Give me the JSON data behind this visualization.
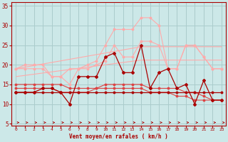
{
  "x": [
    0,
    1,
    2,
    3,
    4,
    5,
    6,
    7,
    8,
    9,
    10,
    11,
    12,
    13,
    14,
    15,
    16,
    17,
    18,
    19,
    20,
    21,
    22,
    23
  ],
  "line_flat_dark": [
    13,
    13,
    13,
    13,
    13,
    13,
    13,
    13,
    13,
    13,
    13,
    13,
    13,
    13,
    13,
    13,
    13,
    13,
    13,
    13,
    13,
    13,
    13,
    13
  ],
  "line_medium1": [
    15,
    15,
    15,
    15,
    15,
    15,
    14,
    14,
    14,
    14,
    15,
    15,
    15,
    15,
    15,
    14,
    14,
    14,
    14,
    13,
    13,
    12,
    11,
    11
  ],
  "line_medium2": [
    14,
    14,
    14,
    14,
    14,
    13,
    13,
    13,
    13,
    14,
    14,
    14,
    14,
    14,
    14,
    13,
    13,
    13,
    12,
    12,
    11,
    11,
    11,
    11
  ],
  "line_jagged": [
    13,
    13,
    13,
    14,
    14,
    13,
    10,
    17,
    17,
    17,
    22,
    23,
    18,
    18,
    25,
    14,
    18,
    19,
    14,
    15,
    10,
    16,
    11,
    11
  ],
  "line_gust_top": [
    19,
    19,
    19,
    19,
    17,
    17,
    19,
    19,
    20,
    21,
    25,
    29,
    29,
    29,
    32,
    32,
    30,
    19,
    19,
    25,
    25,
    22,
    19,
    19
  ],
  "line_gust_mid": [
    19,
    20,
    20,
    20,
    17,
    17,
    15,
    19,
    19,
    20,
    21,
    25,
    22,
    22,
    26,
    26,
    25,
    19,
    19,
    25,
    25,
    22,
    19,
    19
  ],
  "line_trend_upper": [
    19,
    19.4,
    19.8,
    20.2,
    20.6,
    21.0,
    21.4,
    21.8,
    22.2,
    22.6,
    23.0,
    23.4,
    23.8,
    24.2,
    24.6,
    24.6,
    24.6,
    24.6,
    24.6,
    24.6,
    24.6,
    24.6,
    24.6,
    24.6
  ],
  "line_trend_lower": [
    17,
    17.3,
    17.6,
    17.9,
    18.2,
    18.5,
    18.8,
    19.1,
    19.4,
    19.7,
    20.0,
    20.3,
    20.6,
    20.9,
    21.2,
    21.2,
    21.2,
    21.2,
    21.2,
    21.2,
    21.2,
    21.2,
    21.2,
    21.2
  ],
  "bg_color": "#cce8e8",
  "grid_color": "#aacccc",
  "line_dark": "#aa0000",
  "line_medium": "#dd4444",
  "line_light": "#ffaaaa",
  "xlabel": "Vent moyen/en rafales ( km/h )",
  "ylim": [
    4.5,
    36
  ],
  "xlim": [
    -0.5,
    23.5
  ],
  "yticks": [
    5,
    10,
    15,
    20,
    25,
    30,
    35
  ],
  "xticks": [
    0,
    1,
    2,
    3,
    4,
    5,
    6,
    7,
    8,
    9,
    10,
    11,
    12,
    13,
    14,
    15,
    16,
    17,
    18,
    19,
    20,
    21,
    22,
    23
  ]
}
